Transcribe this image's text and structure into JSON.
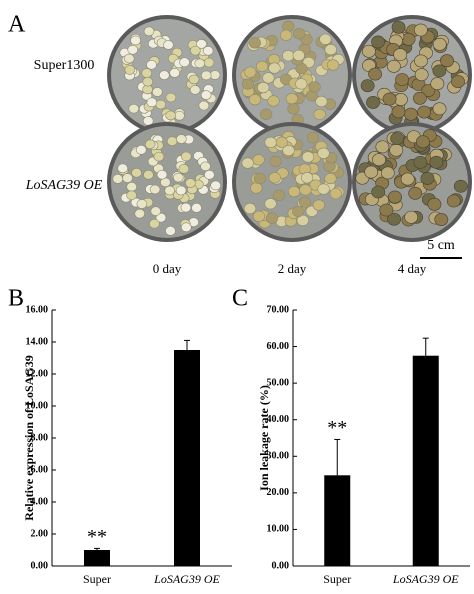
{
  "figure": {
    "panel_labels": [
      "A",
      "B",
      "C"
    ],
    "row_labels": [
      "Super1300",
      "LoSAG39 OE"
    ],
    "column_labels": [
      "0 day",
      "2 day",
      "4 day"
    ],
    "scale_bar": "5 cm"
  },
  "chart_data": [
    {
      "type": "bar",
      "ylabel": "Relative expression of LoSAG39",
      "categories": [
        "Super",
        "LoSAG39 OE"
      ],
      "values": [
        1.0,
        13.5
      ],
      "errors": [
        0.1,
        0.6
      ],
      "color": "#000000",
      "annotation": "**",
      "ylim": [
        0,
        16
      ],
      "yticks": [
        {
          "value": 0,
          "label": "0.00"
        },
        {
          "value": 2,
          "label": "2.00"
        },
        {
          "value": 4,
          "label": "4.00"
        },
        {
          "value": 6,
          "label": "6.00"
        },
        {
          "value": 8,
          "label": "8.00"
        },
        {
          "value": 10,
          "label": "10.00"
        },
        {
          "value": 12,
          "label": "12.00"
        },
        {
          "value": 14,
          "label": "14.00"
        },
        {
          "value": 16,
          "label": "16.00"
        }
      ]
    },
    {
      "type": "bar",
      "ylabel": "Ion leakage rate (%)",
      "categories": [
        "Super",
        "LoSAG39 OE"
      ],
      "values": [
        24.8,
        57.5
      ],
      "errors": [
        9.8,
        4.8
      ],
      "color": "#000000",
      "annotation": "**",
      "ylim": [
        0,
        70
      ],
      "yticks": [
        {
          "value": 0,
          "label": "0.00"
        },
        {
          "value": 10,
          "label": "10.00"
        },
        {
          "value": 20,
          "label": "20.00"
        },
        {
          "value": 30,
          "label": "30.00"
        },
        {
          "value": 40,
          "label": "40.00"
        },
        {
          "value": 50,
          "label": "50.00"
        },
        {
          "value": 60,
          "label": "60.00"
        },
        {
          "value": 70,
          "label": "70.00"
        }
      ]
    }
  ]
}
